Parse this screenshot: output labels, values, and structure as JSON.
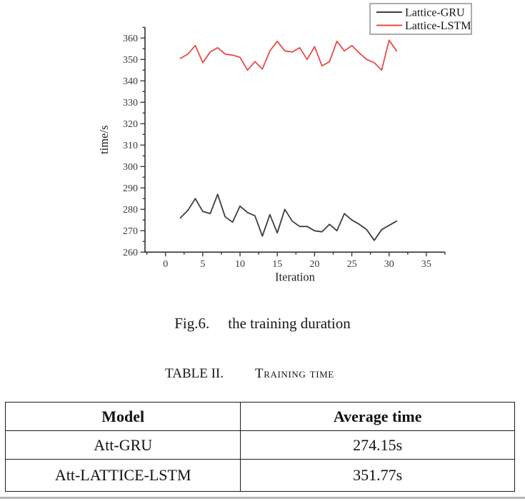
{
  "caption": {
    "label": "Fig.6.",
    "text": "the training duration"
  },
  "table_heading": {
    "number": "TABLE II.",
    "title": "Training time"
  },
  "table": {
    "headers": [
      "Model",
      "Average time"
    ],
    "rows": [
      [
        "Att-GRU",
        "274.15s"
      ],
      [
        "Att-LATTICE-LSTM",
        "351.77s"
      ]
    ]
  },
  "chart_data": {
    "type": "line",
    "title": "",
    "xlabel": "Iteration",
    "ylabel": "time/s",
    "xlim": [
      -2.75,
      37.5
    ],
    "ylim": [
      260,
      365
    ],
    "x_major_ticks": [
      0,
      5,
      10,
      15,
      20,
      25,
      30,
      35
    ],
    "x_minor_step": 2.5,
    "y_major_ticks": [
      260,
      270,
      280,
      290,
      300,
      310,
      320,
      330,
      340,
      350,
      360
    ],
    "y_minor_step": 5,
    "grid": false,
    "legend_position": "top-right",
    "axis_color": "#2e2e2e",
    "x": [
      2,
      3,
      4,
      5,
      6,
      7,
      8,
      9,
      10,
      11,
      12,
      13,
      14,
      15,
      16,
      17,
      18,
      19,
      20,
      21,
      22,
      23,
      24,
      25,
      26,
      27,
      28,
      29,
      30,
      31
    ],
    "series": [
      {
        "name": "Lattice-GRU",
        "color": "#3d3d3d",
        "values": [
          276,
          279.5,
          285,
          279,
          278,
          287,
          276.5,
          274,
          281.5,
          278.5,
          277,
          267.5,
          277.5,
          269,
          280,
          274.5,
          272,
          272,
          270,
          269.5,
          273,
          270,
          278,
          275,
          273,
          270.5,
          265.5,
          270.5,
          272.5,
          274.5
        ]
      },
      {
        "name": "Lattice-LSTM",
        "color": "#ea4b47",
        "values": [
          350.5,
          352.5,
          356.5,
          348.5,
          353.5,
          355.5,
          352.5,
          352,
          351,
          345,
          349,
          345.5,
          354,
          358.5,
          354,
          353.5,
          355.5,
          350,
          356,
          347,
          349,
          358.5,
          354,
          356.5,
          353,
          350,
          348.5,
          345,
          359,
          354
        ]
      }
    ]
  }
}
